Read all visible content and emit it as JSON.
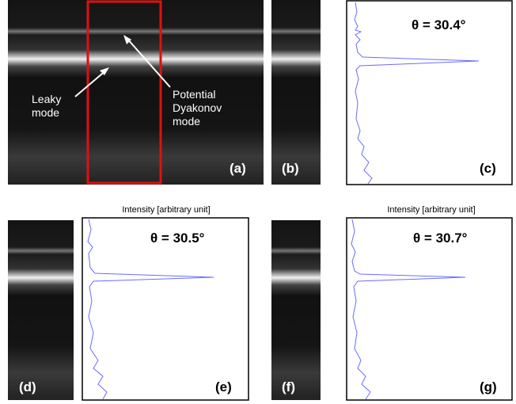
{
  "panel_labels": [
    "(a)",
    "(b)",
    "(c)",
    "(d)",
    "(e)",
    "(f)",
    "(g)"
  ],
  "annotations": {
    "leaky": [
      "Leaky",
      "mode"
    ],
    "dyakonov": [
      "Potential",
      "Dyakonov",
      "mode"
    ]
  },
  "angles": [
    "θ = 30.4°",
    "θ = 30.5°",
    "θ = 30.7°"
  ],
  "axis_titles": [
    "Intensity [arbitrary unit]",
    "Intensity [arbitrary unit]"
  ]
}
